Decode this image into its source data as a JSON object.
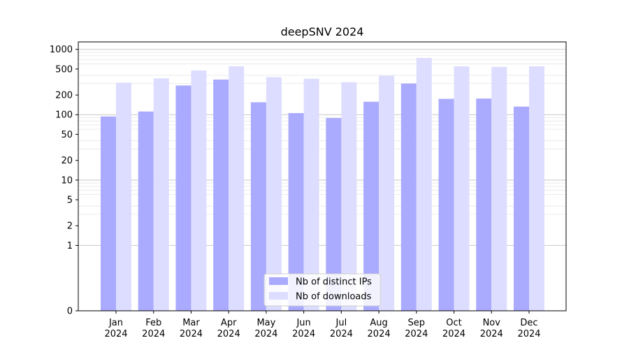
{
  "chart_data": {
    "type": "bar",
    "title": "deepSNV 2024",
    "xlabel": "",
    "ylabel": "",
    "y_scale": "symlog",
    "ylim": [
      0,
      1300
    ],
    "grid": "horizontal, major and minor",
    "legend_position": "bottom-center",
    "categories": [
      [
        "Jan",
        "2024"
      ],
      [
        "Feb",
        "2024"
      ],
      [
        "Mar",
        "2024"
      ],
      [
        "Apr",
        "2024"
      ],
      [
        "May",
        "2024"
      ],
      [
        "Jun",
        "2024"
      ],
      [
        "Jul",
        "2024"
      ],
      [
        "Aug",
        "2024"
      ],
      [
        "Sep",
        "2024"
      ],
      [
        "Oct",
        "2024"
      ],
      [
        "Nov",
        "2024"
      ],
      [
        "Dec",
        "2024"
      ]
    ],
    "y_ticks": [
      0,
      1,
      2,
      5,
      10,
      20,
      50,
      100,
      200,
      500,
      1000
    ],
    "y_tick_labels": [
      "0",
      "1",
      "2",
      "5",
      "10",
      "20",
      "50",
      "100",
      "200",
      "500",
      "1000"
    ],
    "series": [
      {
        "name": "Nb of distinct IPs",
        "color": "#aaaaff",
        "values": [
          94,
          112,
          280,
          345,
          155,
          106,
          89,
          158,
          300,
          175,
          177,
          133
        ]
      },
      {
        "name": "Nb of downloads",
        "color": "#ddddff",
        "values": [
          310,
          360,
          475,
          550,
          375,
          355,
          315,
          395,
          740,
          550,
          540,
          550
        ]
      }
    ]
  }
}
